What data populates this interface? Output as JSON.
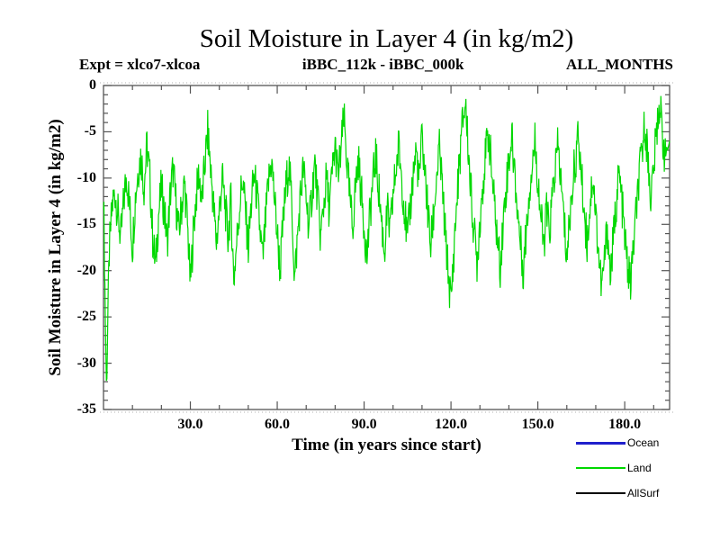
{
  "header": {
    "title": "Soil Moisture in Layer 4 (in kg/m2)",
    "expt_label": "Expt = xlco7-xlcoa",
    "run_label": "iBBC_112k - iBBC_000k",
    "months_label": "ALL_MONTHS"
  },
  "chart_data": {
    "type": "line",
    "title": "Soil Moisture in Layer 4 (in kg/m2)",
    "xlabel": "Time (in years since start)",
    "ylabel": "Soil Moisture in Layer 4 (in kg/m2)",
    "xlim": [
      0,
      195.5
    ],
    "ylim": [
      -35,
      0
    ],
    "grid": false,
    "x_major_ticks": [
      30,
      60,
      90,
      120,
      150,
      180
    ],
    "x_major_tick_labels": [
      "30.0",
      "60.0",
      "90.0",
      "120.0",
      "150.0",
      "180.0"
    ],
    "x_minor_step": 10,
    "y_major_ticks": [
      0,
      -5,
      -10,
      -15,
      -20,
      -25,
      -30,
      -35
    ],
    "y_major_tick_labels": [
      "0",
      "-5",
      "-10",
      "-15",
      "-20",
      "-25",
      "-30",
      "-35"
    ],
    "y_minor_step": 1,
    "frame_color": "#555555",
    "dotted_border_color": "#b0b0b0",
    "legend": {
      "position": "below-right",
      "entries": [
        {
          "name": "Ocean",
          "color": "#2020cc",
          "line_width": 3
        },
        {
          "name": "Land",
          "color": "#00d800",
          "line_width": 2
        },
        {
          "name": "AllSurf",
          "color": "#000000",
          "line_width": 2
        }
      ]
    },
    "series": [
      {
        "name": "Land",
        "color": "#00d800",
        "x_step_years": 1,
        "noise_amplitude": 2.4,
        "subpoints_per_year": 6,
        "annual_values": [
          -11,
          -32.5,
          -18,
          -13,
          -11.5,
          -14,
          -16.5,
          -12.5,
          -9.5,
          -13,
          -17.5,
          -12,
          -9,
          -7.5,
          -11,
          -6.5,
          -10,
          -16.5,
          -19.5,
          -14,
          -11,
          -13.5,
          -17,
          -12,
          -9,
          -12.5,
          -16,
          -13,
          -10.5,
          -15,
          -21.5,
          -16,
          -12,
          -9.5,
          -12.5,
          -8.5,
          -5,
          -9,
          -13,
          -17,
          -13.5,
          -10,
          -13,
          -16.5,
          -12.5,
          -21,
          -17,
          -13,
          -10,
          -13.5,
          -17.5,
          -13,
          -9.5,
          -12,
          -15.5,
          -19,
          -14.5,
          -10.5,
          -8,
          -12,
          -16,
          -20,
          -15,
          -11,
          -8.5,
          -12.5,
          -21,
          -16.5,
          -12,
          -9,
          -12,
          -15.5,
          -11.5,
          -8.5,
          -12.5,
          -16.5,
          -13,
          -10,
          -13.5,
          -9.5,
          -6.5,
          -10,
          -7,
          -3.5,
          -8,
          -12,
          -15.5,
          -11,
          -8,
          -11.5,
          -15,
          -18.5,
          -14,
          -10.5,
          -7.5,
          -11,
          -14.5,
          -18,
          -13.5,
          -16,
          -12,
          -9,
          -6.5,
          -10,
          -13.5,
          -17,
          -13,
          -9.5,
          -7,
          -10.5,
          -5.5,
          -9.5,
          -13.5,
          -17.5,
          -14,
          -10,
          -7,
          -11,
          -16,
          -20,
          -23.5,
          -18,
          -12.5,
          -8,
          -4,
          -1.8,
          -7,
          -12,
          -16,
          -19,
          -14.5,
          -10.5,
          -7.5,
          -5,
          -9,
          -13,
          -16.5,
          -19.5,
          -15,
          -11,
          -8,
          -5.5,
          -9.5,
          -13.5,
          -17,
          -20,
          -15.5,
          -11.5,
          -8.5,
          -6,
          -10,
          -14,
          -17.5,
          -13.5,
          -16,
          -12,
          -9,
          -6.5,
          -10.5,
          -14.5,
          -18.5,
          -14.5,
          -10.5,
          -8,
          -5.5,
          -9.5,
          -13.5,
          -17,
          -13,
          -9.5,
          -14,
          -18,
          -22,
          -19,
          -15,
          -20.5,
          -17,
          -13,
          -9.5,
          -12.5,
          -16.5,
          -19.5,
          -21.5,
          -17.5,
          -13.5,
          -10,
          -7,
          -4,
          -8,
          -12,
          -9,
          -5,
          -1.8,
          -5,
          -8,
          -6
        ]
      }
    ]
  }
}
